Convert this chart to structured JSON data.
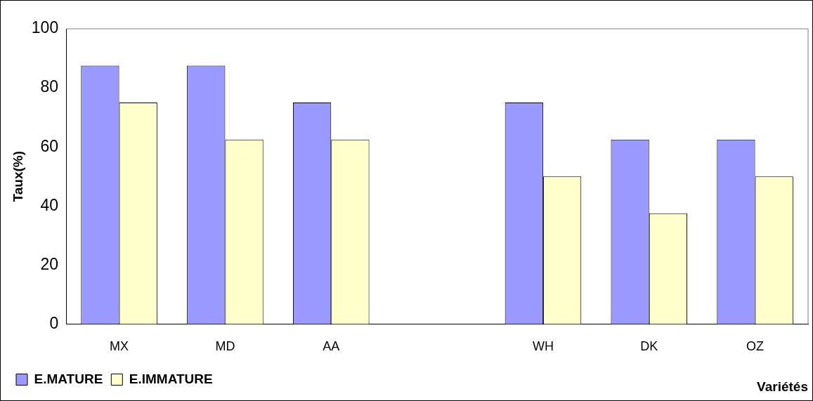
{
  "chart_data": {
    "type": "bar",
    "xlabel": "Variétés",
    "ylabel": "Taux(%)",
    "categories": [
      "MX",
      "MD",
      "AA",
      null,
      "WH",
      "DK",
      "OZ"
    ],
    "series": [
      {
        "name": "E.MATURE",
        "color": "#9999ff",
        "values": [
          87.5,
          87.5,
          75,
          null,
          75,
          62.5,
          62.5
        ]
      },
      {
        "name": "E.IMMATURE",
        "color": "#ffffcc",
        "values": [
          75,
          62.5,
          62.5,
          null,
          50,
          37.5,
          50
        ]
      }
    ],
    "ylim": [
      0,
      100
    ],
    "yticks": [
      0,
      20,
      40,
      60,
      80,
      100
    ],
    "grid": false,
    "legend": "bottom left"
  }
}
